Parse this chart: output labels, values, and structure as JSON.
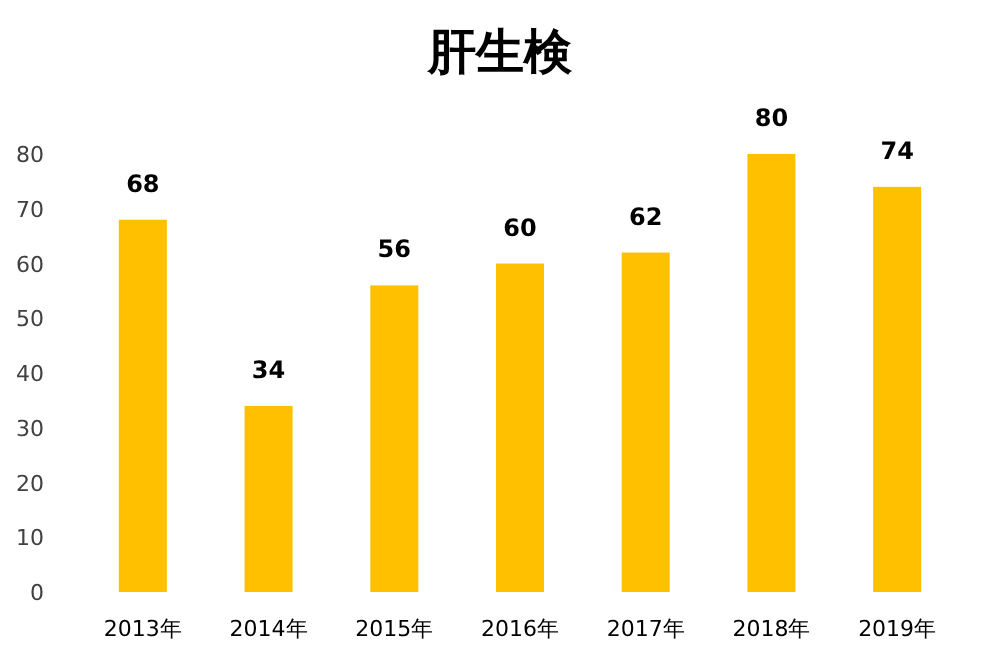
{
  "chart_data": {
    "type": "bar",
    "title": "肝生検",
    "categories": [
      "2013年",
      "2014年",
      "2015年",
      "2016年",
      "2017年",
      "2018年",
      "2019年"
    ],
    "values": [
      68,
      34,
      56,
      60,
      62,
      80,
      74
    ],
    "color": "#ffc000",
    "ylim": [
      0,
      80
    ],
    "yticks": [
      0,
      10,
      20,
      30,
      40,
      50,
      60,
      70,
      80
    ],
    "data_labels": true
  }
}
